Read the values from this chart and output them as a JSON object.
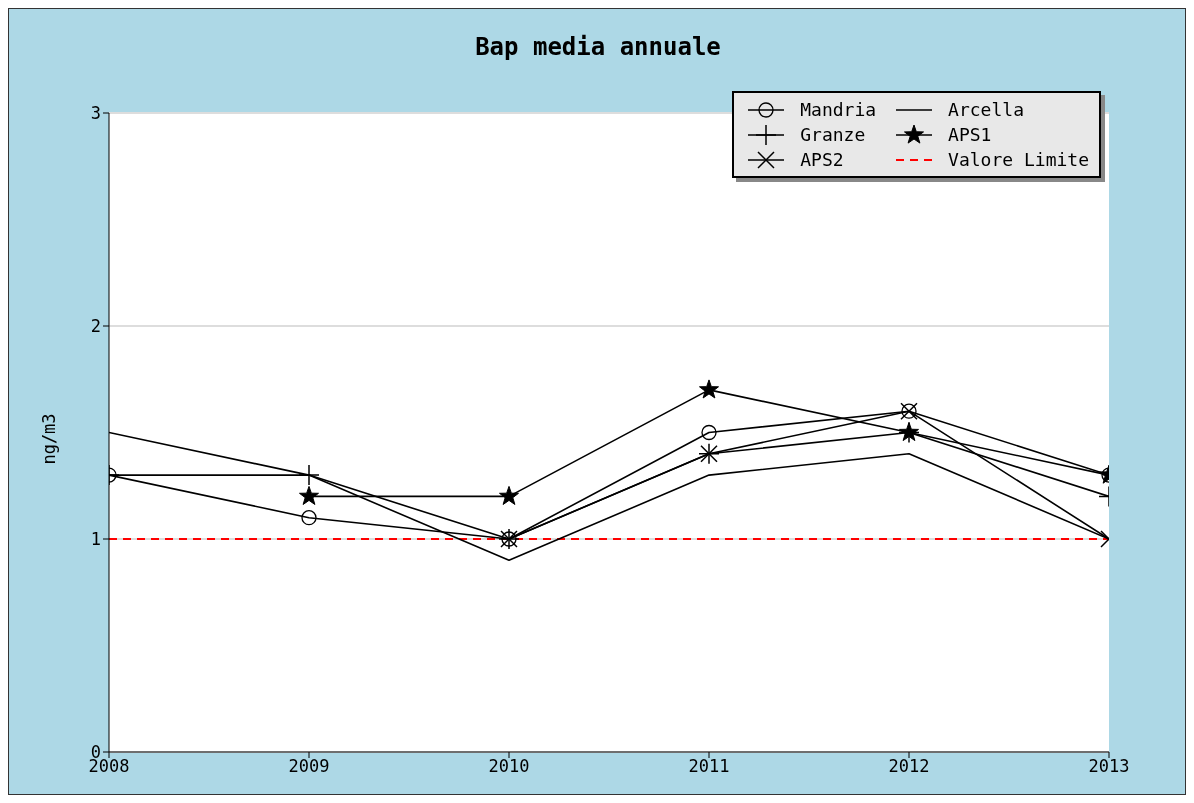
{
  "chart_data": {
    "type": "line",
    "title": "Bap media annuale",
    "ylabel": "ng/m3",
    "x": [
      2008,
      2009,
      2010,
      2011,
      2012,
      2013
    ],
    "series": [
      {
        "name": "Mandria",
        "color": "#000000",
        "marker": "circle",
        "values": [
          1.3,
          1.1,
          1.0,
          1.5,
          1.6,
          1.3
        ]
      },
      {
        "name": "Granze",
        "color": "#000000",
        "marker": "cross",
        "values": [
          1.3,
          1.3,
          1.0,
          1.4,
          1.5,
          1.2
        ]
      },
      {
        "name": "APS2",
        "color": "#000000",
        "marker": "cross",
        "values": [
          null,
          null,
          1.0,
          1.4,
          1.6,
          1.0
        ]
      },
      {
        "name": "Arcella",
        "color": "#000000",
        "marker": "none",
        "values": [
          1.5,
          1.3,
          0.9,
          1.3,
          1.4,
          1.0
        ]
      },
      {
        "name": "APS1",
        "color": "#000000",
        "marker": "star",
        "values": [
          null,
          1.2,
          1.2,
          1.7,
          1.5,
          1.3
        ]
      }
    ],
    "ref_lines": [
      {
        "axis": "y",
        "value": 1,
        "label": "Valore Limite",
        "color": "#ff0000",
        "line_style": "dashed"
      }
    ],
    "xlim": [
      2008,
      2013
    ],
    "xticks": [
      2008,
      2009,
      2010,
      2011,
      2012,
      2013
    ],
    "ylim": [
      0,
      3
    ],
    "yticks": [
      0,
      1,
      2,
      3
    ],
    "grid": "y",
    "legend": "top right",
    "line_style": "solid"
  }
}
